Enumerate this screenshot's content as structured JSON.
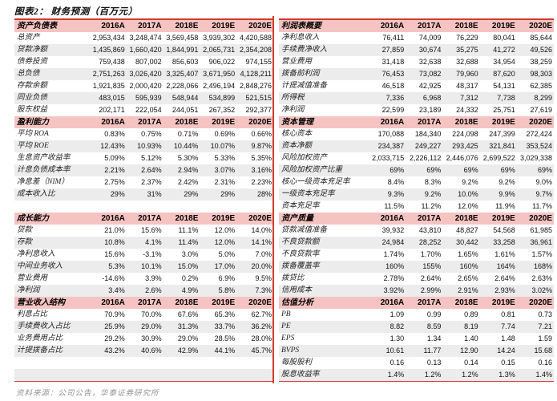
{
  "title": "图表2：  财务预测（百万元）",
  "footer": "资料来源：公司公告，华泰证券研究所",
  "years": [
    "2016A",
    "2017A",
    "2018E",
    "2019E",
    "2020E"
  ],
  "colors": {
    "header_bg": "#f5c4c2",
    "border_red": "#d23a2e",
    "stripe_gray": "#ececec"
  },
  "left_sections": [
    {
      "header": "资产负债表",
      "blank_rows_after": 0,
      "rows": [
        {
          "label": "总资产",
          "values": [
            "2,953,434",
            "3,248,474",
            "3,569,458",
            "3,939,302",
            "4,420,588"
          ]
        },
        {
          "label": "贷款净额",
          "values": [
            "1,435,869",
            "1,660,420",
            "1,844,991",
            "2,065,731",
            "2,354,208"
          ]
        },
        {
          "label": "债券投资",
          "values": [
            "759,438",
            "807,002",
            "856,603",
            "906,022",
            "974,155"
          ]
        },
        {
          "label": "总负债",
          "values": [
            "2,751,263",
            "3,026,420",
            "3,325,407",
            "3,671,950",
            "4,128,211"
          ]
        },
        {
          "label": "存款余额",
          "values": [
            "1,921,835",
            "2,000,420",
            "2,228,066",
            "2,496,194",
            "2,848,276"
          ]
        },
        {
          "label": "同业负债",
          "values": [
            "483,015",
            "595,939",
            "548,944",
            "534,899",
            "521,515"
          ]
        },
        {
          "label": "股东权益",
          "values": [
            "202,171",
            "222,054",
            "244,051",
            "267,352",
            "292,377"
          ]
        }
      ]
    },
    {
      "header": "盈利能力",
      "blank_rows_after": 1,
      "rows": [
        {
          "label": "平均 ROA",
          "values": [
            "0.83%",
            "0.75%",
            "0.71%",
            "0.69%",
            "0.66%"
          ]
        },
        {
          "label": "平均 ROE",
          "values": [
            "12.43%",
            "10.93%",
            "10.44%",
            "10.07%",
            "9.87%"
          ]
        },
        {
          "label": "生息资产收益率",
          "values": [
            "5.09%",
            "5.12%",
            "5.30%",
            "5.33%",
            "5.35%"
          ]
        },
        {
          "label": "计息负债成本率",
          "values": [
            "2.21%",
            "2.64%",
            "2.94%",
            "3.07%",
            "3.16%"
          ]
        },
        {
          "label": "净息差（NIM）",
          "values": [
            "2.75%",
            "2.37%",
            "2.42%",
            "2.31%",
            "2.23%"
          ]
        },
        {
          "label": "成本收入比",
          "values": [
            "29%",
            "31%",
            "29%",
            "29%",
            "28%"
          ]
        }
      ]
    },
    {
      "header": "成长能力",
      "blank_rows_after": 0,
      "rows": [
        {
          "label": "贷款",
          "values": [
            "21.0%",
            "15.6%",
            "11.1%",
            "12.0%",
            "14.0%"
          ]
        },
        {
          "label": "存款",
          "values": [
            "10.8%",
            "4.1%",
            "11.4%",
            "12.0%",
            "14.1%"
          ]
        },
        {
          "label": "净利息收入",
          "values": [
            "15.6%",
            "-3.1%",
            "3.0%",
            "5.0%",
            "7.0%"
          ]
        },
        {
          "label": "中间业务收入",
          "values": [
            "5.3%",
            "10.1%",
            "15.0%",
            "17.0%",
            "20.0%"
          ]
        },
        {
          "label": "营业费用",
          "values": [
            "-14.6%",
            "3.9%",
            "0.2%",
            "6.9%",
            "9.5%"
          ]
        },
        {
          "label": "净利润",
          "values": [
            "3.4%",
            "2.6%",
            "4.9%",
            "5.8%",
            "7.3%"
          ]
        }
      ]
    },
    {
      "header": "营业收入结构",
      "blank_rows_after": 2,
      "rows": [
        {
          "label": "利息占比",
          "values": [
            "70.9%",
            "70.0%",
            "67.6%",
            "65.3%",
            "62.7%"
          ]
        },
        {
          "label": "手续费收入占比",
          "values": [
            "25.9%",
            "29.0%",
            "31.3%",
            "33.7%",
            "36.2%"
          ]
        },
        {
          "label": "业务费用占比",
          "values": [
            "29.2%",
            "30.9%",
            "29.0%",
            "28.5%",
            "28.0%"
          ]
        },
        {
          "label": "计提拨备占比",
          "values": [
            "43.2%",
            "40.6%",
            "42.9%",
            "44.1%",
            "45.7%"
          ]
        }
      ]
    }
  ],
  "right_sections": [
    {
      "header": "利润表概要",
      "blank_rows_after": 0,
      "rows": [
        {
          "label": "净利息收入",
          "values": [
            "76,411",
            "74,009",
            "76,229",
            "80,041",
            "85,644"
          ]
        },
        {
          "label": "手续费净收入",
          "values": [
            "27,859",
            "30,674",
            "35,275",
            "41,272",
            "49,526"
          ]
        },
        {
          "label": "营业费用",
          "values": [
            "31,418",
            "32,638",
            "32,688",
            "34,954",
            "38,259"
          ]
        },
        {
          "label": "拨备前利润",
          "values": [
            "76,453",
            "73,082",
            "79,960",
            "87,620",
            "98,303"
          ]
        },
        {
          "label": "计提减值准备",
          "values": [
            "46,518",
            "42,925",
            "48,317",
            "54,131",
            "62,385"
          ]
        },
        {
          "label": "所得税",
          "values": [
            "7,336",
            "6,968",
            "7,312",
            "7,738",
            "8,299"
          ]
        },
        {
          "label": "净利润",
          "values": [
            "22,599",
            "23,189",
            "24,332",
            "25,751",
            "27,619"
          ]
        }
      ]
    },
    {
      "header": "资本管理",
      "blank_rows_after": 0,
      "rows": [
        {
          "label": "核心资本",
          "values": [
            "170,088",
            "184,340",
            "224,098",
            "247,399",
            "272,424"
          ]
        },
        {
          "label": "资本净额",
          "values": [
            "234,387",
            "249,227",
            "293,425",
            "321,841",
            "353,524"
          ]
        },
        {
          "label": "风险加权资产",
          "values": [
            "2,033,715",
            "2,226,112",
            "2,446,076",
            "2,699,522",
            "3,029,338"
          ]
        },
        {
          "label": "风险加权资产比重",
          "values": [
            "69%",
            "69%",
            "69%",
            "69%",
            "69%"
          ]
        },
        {
          "label": "核心一级资本充足率",
          "values": [
            "8.4%",
            "8.3%",
            "9.2%",
            "9.2%",
            "9.0%"
          ]
        },
        {
          "label": "一级资本充足率",
          "values": [
            "9.3%",
            "9.2%",
            "10.0%",
            "9.9%",
            "9.7%"
          ]
        },
        {
          "label": "资本充足率",
          "values": [
            "11.5%",
            "11.2%",
            "12.0%",
            "11.9%",
            "11.7%"
          ]
        }
      ]
    },
    {
      "header": "资产质量",
      "blank_rows_after": 0,
      "rows": [
        {
          "label": "贷款减值准备",
          "values": [
            "39,932",
            "43,810",
            "48,827",
            "54,568",
            "61,985"
          ]
        },
        {
          "label": "不良贷款额",
          "values": [
            "24,984",
            "28,252",
            "30,442",
            "33,258",
            "36,961"
          ]
        },
        {
          "label": "不良贷款率",
          "values": [
            "1.74%",
            "1.70%",
            "1.65%",
            "1.61%",
            "1.57%"
          ]
        },
        {
          "label": "拨备覆盖率",
          "values": [
            "160%",
            "155%",
            "160%",
            "164%",
            "168%"
          ]
        },
        {
          "label": "拨贷比",
          "values": [
            "2.78%",
            "2.64%",
            "2.65%",
            "2.64%",
            "2.63%"
          ]
        },
        {
          "label": "信用成本",
          "values": [
            "3.92%",
            "2.99%",
            "2.91%",
            "2.93%",
            "3.02%"
          ]
        }
      ]
    },
    {
      "header": "估值分析",
      "blank_rows_after": 0,
      "rows": [
        {
          "label": "PB",
          "values": [
            "1.09",
            "0.99",
            "0.89",
            "0.81",
            "0.73"
          ]
        },
        {
          "label": "PE",
          "values": [
            "8.82",
            "8.59",
            "8.19",
            "7.74",
            "7.21"
          ]
        },
        {
          "label": "EPS",
          "values": [
            "1.30",
            "1.34",
            "1.40",
            "1.48",
            "1.59"
          ]
        },
        {
          "label": "BVPS",
          "values": [
            "10.61",
            "11.77",
            "12.90",
            "14.24",
            "15.68"
          ]
        },
        {
          "label": "每股股利",
          "values": [
            "0.16",
            "0.13",
            "0.14",
            "0.15",
            "0.16"
          ]
        },
        {
          "label": "股息收益率",
          "values": [
            "1.4%",
            "1.2%",
            "1.2%",
            "1.3%",
            "1.4%"
          ]
        }
      ]
    }
  ]
}
